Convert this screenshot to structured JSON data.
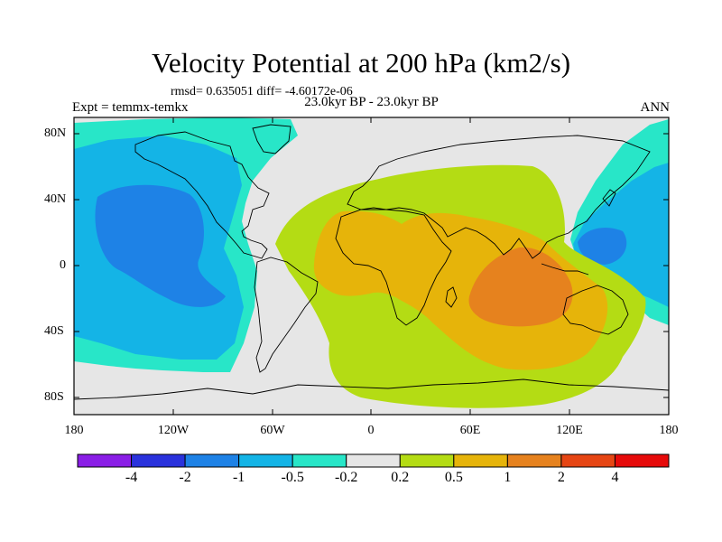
{
  "title": "Velocity Potential at 200 hPa (km2/s)",
  "stats": "rmsd= 0.635051  diff= -4.60172e-06",
  "subtitle": "23.0kyr BP - 23.0kyr BP",
  "expt_label": "Expt = temmx-temkx",
  "season": "ANN",
  "map": {
    "y_ticks": [
      "80N",
      "40N",
      "0",
      "40S",
      "80S"
    ],
    "x_ticks": [
      "180",
      "120W",
      "60W",
      "0",
      "60E",
      "120E",
      "180"
    ]
  },
  "colorbar": {
    "labels": [
      "-4",
      "-2",
      "-1",
      "-0.5",
      "-0.2",
      "0.2",
      "0.5",
      "1",
      "2",
      "4"
    ],
    "colors": [
      "#8a1ee6",
      "#2a32dc",
      "#1e82e6",
      "#14b4e6",
      "#28e6c8",
      "#e6e6e6",
      "#b4dc14",
      "#e6b40a",
      "#e6821e",
      "#e64614",
      "#e60a0a"
    ]
  }
}
